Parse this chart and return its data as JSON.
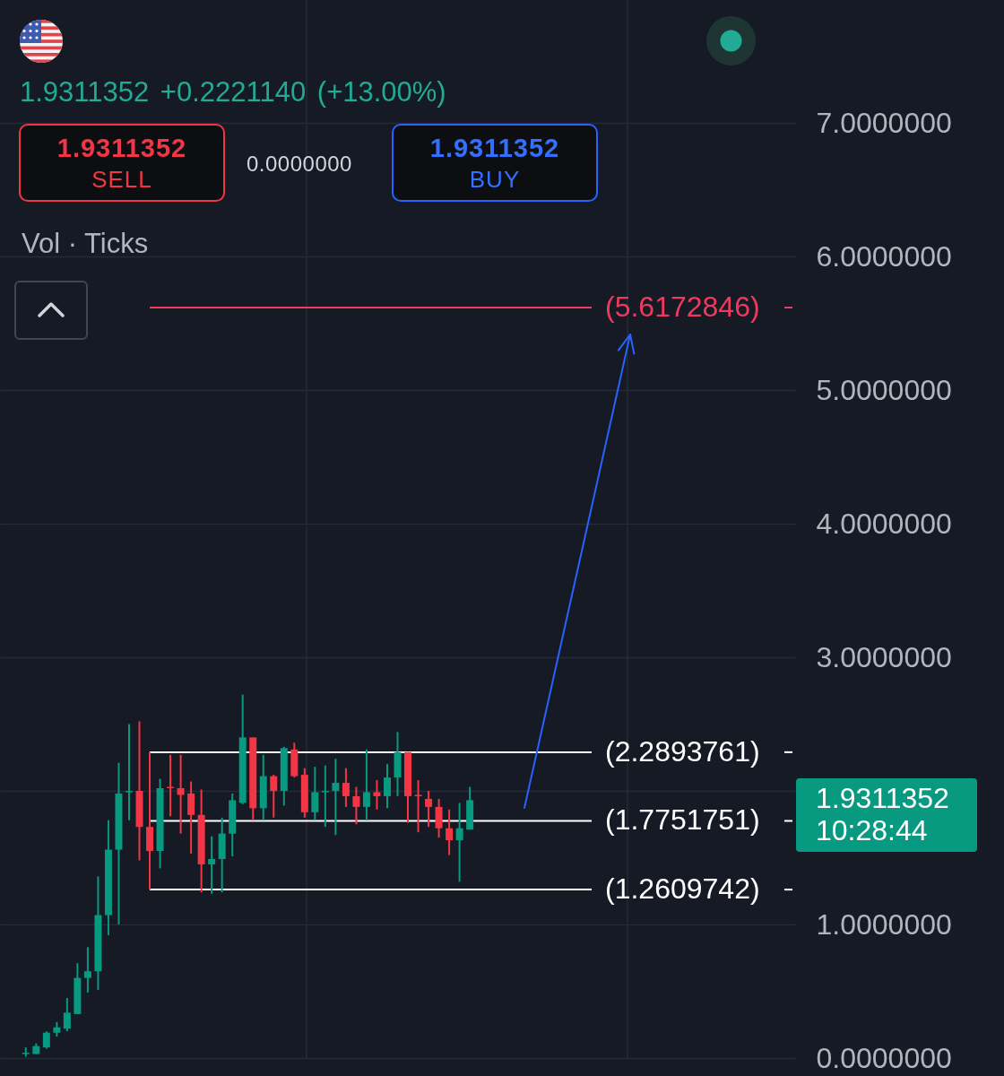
{
  "chart_data": {
    "type": "candlestick",
    "subtitle": "1.9311352 +0.2221140 (+13.00%)",
    "categories": [
      null,
      null,
      null,
      null,
      null,
      null,
      null,
      null,
      null,
      null,
      null,
      null,
      null,
      null,
      null,
      null,
      null,
      null,
      null,
      null,
      null,
      null,
      null,
      null,
      null,
      null,
      null,
      null,
      null,
      null,
      null,
      null,
      null,
      null,
      null,
      null,
      null,
      null,
      null,
      null,
      null,
      null,
      null,
      null,
      null,
      null,
      null,
      null,
      null,
      null,
      null,
      null,
      null,
      null,
      null,
      null,
      null,
      null,
      null,
      null,
      null,
      null,
      null,
      null,
      null,
      null,
      null,
      null,
      null,
      null,
      null,
      null,
      null,
      null,
      null,
      null,
      null
    ],
    "ohlc": [
      null,
      null,
      [
        0.03,
        0.08,
        0.01,
        0.04
      ],
      [
        0.03,
        0.11,
        0.03,
        0.09
      ],
      [
        0.08,
        0.2,
        0.07,
        0.19
      ],
      [
        0.19,
        0.27,
        0.16,
        0.23
      ],
      [
        0.22,
        0.45,
        0.2,
        0.34
      ],
      [
        0.33,
        0.71,
        0.33,
        0.6
      ],
      [
        0.6,
        0.83,
        0.49,
        0.65
      ],
      [
        0.65,
        1.36,
        0.51,
        1.07
      ],
      [
        1.07,
        1.78,
        0.92,
        1.56
      ],
      [
        1.56,
        2.21,
        1.0,
        1.98
      ],
      [
        1.99,
        2.5,
        1.78,
        2.0
      ],
      [
        2.0,
        2.52,
        1.48,
        1.73
      ],
      [
        1.73,
        2.29,
        1.26,
        1.55
      ],
      [
        1.55,
        2.09,
        1.42,
        2.02
      ],
      [
        2.03,
        2.27,
        1.81,
        2.02
      ],
      [
        2.02,
        2.27,
        1.68,
        1.97
      ],
      [
        1.98,
        2.07,
        1.53,
        1.82
      ],
      [
        1.82,
        2.01,
        1.24,
        1.45
      ],
      [
        1.45,
        1.66,
        1.23,
        1.49
      ],
      [
        1.49,
        1.8,
        1.24,
        1.68
      ],
      [
        1.68,
        1.98,
        1.51,
        1.93
      ],
      [
        1.91,
        2.72,
        1.9,
        2.4
      ],
      [
        2.4,
        2.4,
        1.78,
        1.87
      ],
      [
        1.87,
        2.27,
        1.78,
        2.11
      ],
      [
        2.11,
        2.12,
        1.8,
        2.0
      ],
      [
        2.0,
        2.33,
        1.89,
        2.32
      ],
      [
        2.31,
        2.36,
        2.1,
        2.11
      ],
      [
        2.12,
        2.17,
        1.8,
        1.84
      ],
      [
        1.84,
        2.18,
        1.78,
        1.99
      ],
      [
        1.99,
        2.19,
        1.73,
        2.0
      ],
      [
        2.0,
        2.24,
        1.67,
        2.06
      ],
      [
        2.06,
        2.17,
        1.88,
        1.96
      ],
      [
        1.96,
        2.03,
        1.75,
        1.88
      ],
      [
        1.88,
        2.31,
        1.78,
        1.99
      ],
      [
        1.99,
        2.08,
        1.86,
        1.96
      ],
      [
        1.96,
        2.2,
        1.87,
        2.1
      ],
      [
        2.1,
        2.44,
        1.96,
        2.29
      ],
      [
        2.29,
        2.29,
        1.76,
        1.96
      ],
      [
        1.97,
        2.08,
        1.69,
        1.96
      ],
      [
        1.94,
        2.0,
        1.73,
        1.88
      ],
      [
        1.88,
        1.94,
        1.65,
        1.72
      ],
      [
        1.72,
        1.86,
        1.52,
        1.63
      ],
      [
        1.63,
        1.91,
        1.32,
        1.72
      ],
      [
        1.71,
        2.03,
        1.71,
        1.93
      ],
      null,
      null,
      null,
      null,
      null,
      null,
      null,
      null,
      null,
      null,
      null,
      null,
      null,
      null,
      null,
      null,
      null,
      null,
      null,
      null,
      null,
      null,
      null,
      null,
      null,
      null,
      null,
      null,
      null,
      null,
      null
    ],
    "colors": [
      null,
      null,
      "#089981",
      "#089981",
      "#089981",
      "#089981",
      "#089981",
      "#089981",
      "#089981",
      "#089981",
      "#089981",
      "#089981",
      "#089981",
      "#f23645",
      "#f23645",
      "#089981",
      "#f23645",
      "#f23645",
      "#f23645",
      "#f23645",
      "#089981",
      "#089981",
      "#089981",
      "#089981",
      "#f23645",
      "#089981",
      "#f23645",
      "#089981",
      "#f23645",
      "#f23645",
      "#089981",
      "#089981",
      "#089981",
      "#f23645",
      "#f23645",
      "#089981",
      "#f23645",
      "#089981",
      "#089981",
      "#f23645",
      "#f23645",
      "#f23645",
      "#f23645",
      "#f23645",
      "#089981",
      "#089981",
      null,
      null,
      null,
      null,
      null,
      null,
      null,
      null,
      null,
      null,
      null,
      null,
      null,
      null,
      null,
      null,
      null,
      null,
      null,
      null,
      null,
      null,
      null,
      null,
      null,
      null,
      null,
      null,
      null,
      null,
      null
    ],
    "ylim": [
      0,
      7
    ],
    "yticks": [
      {
        "value": 0,
        "label": "0.0000000"
      },
      {
        "value": 1,
        "label": "1.0000000"
      },
      {
        "value": 2,
        "label": null
      },
      {
        "value": 3,
        "label": "3.0000000"
      },
      {
        "value": 4,
        "label": "4.0000000"
      },
      {
        "value": 5,
        "label": "5.0000000"
      },
      {
        "value": 6,
        "label": "6.0000000"
      },
      {
        "value": 7,
        "label": "7.0000000"
      }
    ],
    "grid": "y",
    "tick_labels": "y",
    "ref_lines": [
      {
        "axis": "y",
        "value": 5.6172846,
        "label": "(5.6172846)",
        "color": "#ef3a5d"
      },
      {
        "axis": "y",
        "value": 2.2893761,
        "label": "(2.2893761)",
        "color": "#ffffff"
      },
      {
        "axis": "y",
        "value": 1.7751751,
        "label": "(1.7751751)",
        "color": "#ffffff"
      },
      {
        "axis": "y",
        "value": 1.2609742,
        "label": "(1.2609742)",
        "color": "#ffffff"
      }
    ],
    "annotations": [
      "1.9311352",
      "SELL",
      "0.0000000",
      "1.9311352",
      "BUY",
      "Vol · Ticks",
      "1.9311352 10:28:44"
    ]
  }
}
